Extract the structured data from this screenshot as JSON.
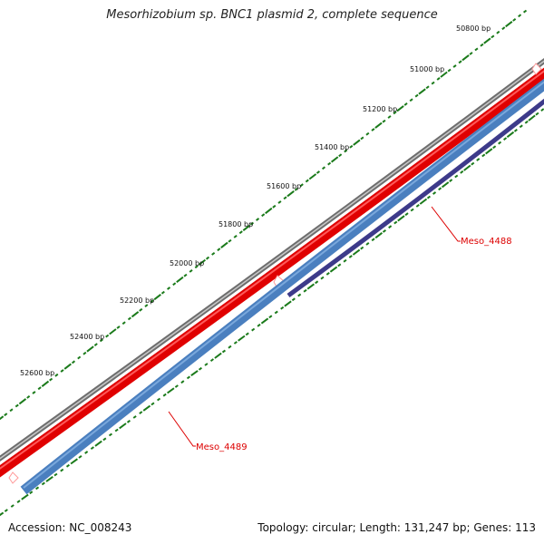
{
  "title": "Mesorhizobium sp. BNC1 plasmid 2, complete sequence",
  "footer": {
    "accession": "Accession: NC_008243",
    "summary": "Topology: circular; Length: 131,247 bp; Genes: 113"
  },
  "scale_labels": [
    "50800 bp",
    "51000 bp",
    "51200 bp",
    "51400 bp",
    "51600 bp",
    "51800 bp",
    "52000 bp",
    "52200 bp",
    "52400 bp",
    "52600 bp"
  ],
  "genes": [
    {
      "name": "Meso_4488",
      "color": "#dd0000"
    },
    {
      "name": "Meso_4489",
      "color": "#dd0000"
    }
  ],
  "colors": {
    "backbone": "#8c8c8c",
    "forward_cds": "#ee0000",
    "reverse_cds": "#4a7fbf",
    "reverse_cds_2": "#3d3a8a",
    "tick": "#1a7a1a"
  }
}
